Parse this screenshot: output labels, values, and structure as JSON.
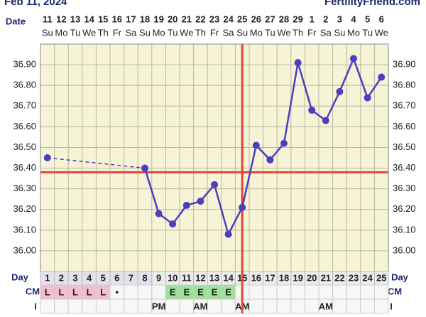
{
  "chart_data": {
    "type": "line",
    "title": "Feb 11, 2024",
    "site": "FertilityFriend.com",
    "date_label": "Date",
    "day_label": "Day",
    "cm_label": "CM",
    "intercourse_label": "I",
    "x": [
      1,
      2,
      3,
      4,
      5,
      6,
      7,
      8,
      9,
      10,
      11,
      12,
      13,
      14,
      15,
      16,
      17,
      18,
      19,
      20,
      21,
      22,
      23,
      24,
      25
    ],
    "dates": [
      "11",
      "12",
      "13",
      "14",
      "15",
      "16",
      "17",
      "18",
      "19",
      "20",
      "21",
      "22",
      "23",
      "24",
      "25",
      "26",
      "27",
      "28",
      "29",
      "1",
      "2",
      "3",
      "4",
      "5",
      "6"
    ],
    "weekdays": [
      "Su",
      "Mo",
      "Tu",
      "We",
      "Th",
      "Fr",
      "Sa",
      "Su",
      "Mo",
      "Tu",
      "We",
      "Th",
      "Fr",
      "Sa",
      "Su",
      "Mo",
      "Tu",
      "We",
      "Th",
      "Fr",
      "Sa",
      "Su",
      "Mo",
      "Tu",
      "We"
    ],
    "series": [
      {
        "name": "Temperature",
        "color": "#4a3fbf",
        "values": [
          36.45,
          null,
          null,
          null,
          null,
          null,
          null,
          36.4,
          36.18,
          36.13,
          36.22,
          36.24,
          36.32,
          36.08,
          36.21,
          36.51,
          36.44,
          36.52,
          36.91,
          36.68,
          36.63,
          36.77,
          36.93,
          36.74,
          36.84
        ]
      }
    ],
    "cervical_mucus": [
      "L",
      "L",
      "L",
      "L",
      "L",
      "•",
      null,
      null,
      null,
      "E",
      "E",
      "E",
      "E",
      "E",
      null,
      null,
      null,
      null,
      null,
      null,
      null,
      null,
      null,
      null,
      null
    ],
    "intercourse": [
      null,
      null,
      null,
      null,
      null,
      null,
      null,
      null,
      "PM",
      null,
      null,
      "AM",
      null,
      null,
      "AM",
      null,
      null,
      null,
      null,
      null,
      "AM",
      null,
      null,
      null,
      null
    ],
    "coverline": 36.38,
    "ovulation_day": 15,
    "reference_color": "#e0463a",
    "ylim": [
      35.9,
      37.0
    ],
    "yticks": [
      {
        "value": 36.0,
        "label": "36.00"
      },
      {
        "value": 36.1,
        "label": "36.10"
      },
      {
        "value": 36.2,
        "label": "36.20"
      },
      {
        "value": 36.3,
        "label": "36.30"
      },
      {
        "value": 36.4,
        "label": "36.40"
      },
      {
        "value": 36.5,
        "label": "36.50"
      },
      {
        "value": 36.6,
        "label": "36.60"
      },
      {
        "value": 36.7,
        "label": "36.70"
      },
      {
        "value": 36.8,
        "label": "36.80"
      },
      {
        "value": 36.9,
        "label": "36.90"
      }
    ],
    "grid": true
  }
}
